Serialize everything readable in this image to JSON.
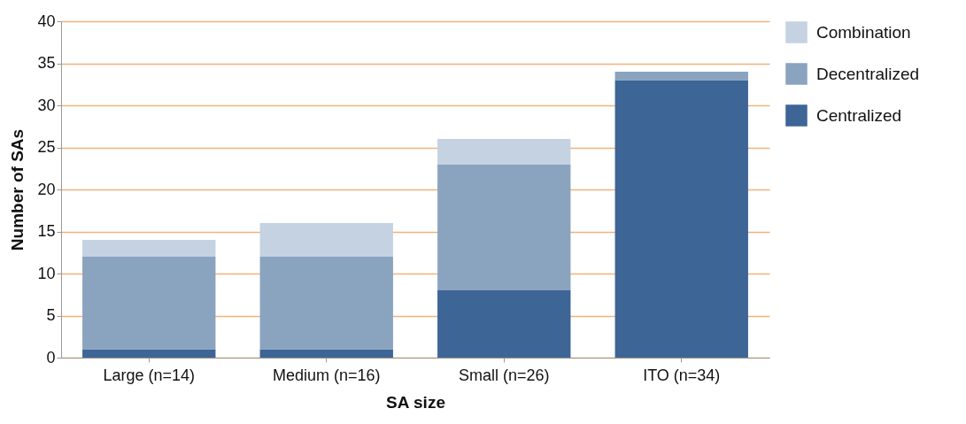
{
  "chart_data": {
    "type": "bar",
    "stacked": true,
    "xlabel": "SA size",
    "ylabel": "Number of SAs",
    "categories": [
      "Large (n=14)",
      "Medium (n=16)",
      "Small (n=26)",
      "ITO (n=34)"
    ],
    "series": [
      {
        "name": "Centralized",
        "color": "#3d6595",
        "values": [
          1,
          1,
          8,
          33
        ]
      },
      {
        "name": "Decentralized",
        "color": "#8aa3bf",
        "values": [
          11,
          11,
          15,
          1
        ]
      },
      {
        "name": "Combination",
        "color": "#c5d2e2",
        "values": [
          2,
          4,
          3,
          0
        ]
      }
    ],
    "ylim": [
      0,
      40
    ],
    "yticks": [
      0,
      5,
      10,
      15,
      20,
      25,
      30,
      35,
      40
    ],
    "grid": "y",
    "legend": "right"
  }
}
